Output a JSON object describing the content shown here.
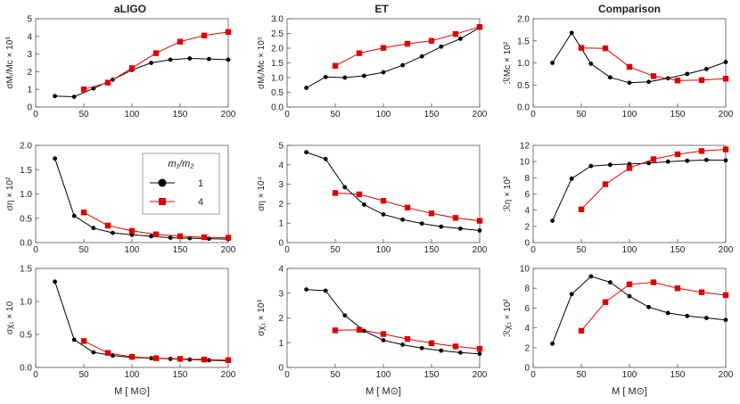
{
  "column_titles": [
    "aLIGO",
    "ET",
    "Comparison"
  ],
  "x_axis_label": "M [ M⊙]",
  "colors": {
    "series_1": "#000000",
    "series_4": "#e00000",
    "frame": "#555555"
  },
  "legend": {
    "title": "m₁/m₂",
    "entries": [
      "1",
      "4"
    ]
  },
  "chart_data": [
    {
      "id": "p00",
      "type": "line",
      "ylabel": "σMⱼ/Mc × 10³",
      "xlim": [
        0,
        200
      ],
      "ylim": [
        0,
        5
      ],
      "xticks": [
        0,
        50,
        100,
        150,
        200
      ],
      "yticks": [
        0,
        1,
        2,
        3,
        4,
        5
      ],
      "ytick_labels": [
        "0",
        "1",
        "2",
        "3",
        "4",
        "5"
      ],
      "series": [
        {
          "name": "1",
          "x": [
            20,
            40,
            60,
            80,
            100,
            120,
            140,
            160,
            180,
            200
          ],
          "y": [
            0.62,
            0.58,
            1.05,
            1.55,
            2.1,
            2.5,
            2.68,
            2.75,
            2.72,
            2.68
          ]
        },
        {
          "name": "4",
          "x": [
            50,
            75,
            100,
            125,
            150,
            175,
            200
          ],
          "y": [
            1.0,
            1.38,
            2.2,
            3.05,
            3.7,
            4.05,
            4.25
          ]
        }
      ]
    },
    {
      "id": "p01",
      "type": "line",
      "ylabel": "σMⱼ/Mc × 10⁵",
      "xlim": [
        0,
        200
      ],
      "ylim": [
        0,
        3
      ],
      "xticks": [
        0,
        50,
        100,
        150,
        200
      ],
      "yticks": [
        0,
        0.5,
        1,
        1.5,
        2,
        2.5,
        3
      ],
      "ytick_labels": [
        "0.0",
        "0.5",
        "1.0",
        "1.5",
        "2.0",
        "2.5",
        "3.0"
      ],
      "series": [
        {
          "name": "1",
          "x": [
            20,
            40,
            60,
            80,
            100,
            120,
            140,
            160,
            180,
            200
          ],
          "y": [
            0.65,
            1.02,
            1.0,
            1.06,
            1.18,
            1.42,
            1.72,
            2.05,
            2.32,
            2.7
          ]
        },
        {
          "name": "4",
          "x": [
            50,
            75,
            100,
            125,
            150,
            175,
            200
          ],
          "y": [
            1.4,
            1.83,
            2.01,
            2.15,
            2.25,
            2.48,
            2.72
          ]
        }
      ]
    },
    {
      "id": "p02",
      "type": "line",
      "ylabel": "ℛMc × 10²",
      "xlim": [
        0,
        200
      ],
      "ylim": [
        0,
        2
      ],
      "xticks": [
        0,
        50,
        100,
        150,
        200
      ],
      "yticks": [
        0,
        0.5,
        1,
        1.5,
        2
      ],
      "ytick_labels": [
        "0.0",
        "0.5",
        "1.0",
        "1.5",
        "2.0"
      ],
      "series": [
        {
          "name": "1",
          "x": [
            20,
            40,
            60,
            80,
            100,
            120,
            140,
            160,
            180,
            200
          ],
          "y": [
            1.0,
            1.68,
            0.98,
            0.67,
            0.55,
            0.57,
            0.65,
            0.75,
            0.86,
            1.02
          ]
        },
        {
          "name": "4",
          "x": [
            50,
            75,
            100,
            125,
            150,
            175,
            200
          ],
          "y": [
            1.34,
            1.33,
            0.91,
            0.7,
            0.6,
            0.61,
            0.64
          ]
        }
      ]
    },
    {
      "id": "p10",
      "type": "line",
      "ylabel": "ση × 10²",
      "xlim": [
        0,
        200
      ],
      "ylim": [
        0,
        2
      ],
      "xticks": [
        0,
        50,
        100,
        150,
        200
      ],
      "yticks": [
        0,
        0.5,
        1,
        1.5,
        2
      ],
      "ytick_labels": [
        "0.0",
        "0.5",
        "1.0",
        "1.5",
        "2.0"
      ],
      "series": [
        {
          "name": "1",
          "x": [
            20,
            40,
            60,
            80,
            100,
            120,
            140,
            160,
            180,
            200
          ],
          "y": [
            1.73,
            0.55,
            0.3,
            0.2,
            0.16,
            0.13,
            0.1,
            0.09,
            0.08,
            0.07
          ]
        },
        {
          "name": "4",
          "x": [
            50,
            75,
            100,
            125,
            150,
            175,
            200
          ],
          "y": [
            0.62,
            0.35,
            0.24,
            0.17,
            0.13,
            0.11,
            0.1
          ]
        }
      ]
    },
    {
      "id": "p11",
      "type": "line",
      "ylabel": "ση × 10⁴",
      "xlim": [
        0,
        200
      ],
      "ylim": [
        0,
        5
      ],
      "xticks": [
        0,
        50,
        100,
        150,
        200
      ],
      "yticks": [
        0,
        1,
        2,
        3,
        4,
        5
      ],
      "ytick_labels": [
        "0",
        "1",
        "2",
        "3",
        "4",
        "5"
      ],
      "series": [
        {
          "name": "1",
          "x": [
            20,
            40,
            60,
            80,
            100,
            120,
            140,
            160,
            180,
            200
          ],
          "y": [
            4.65,
            4.3,
            2.85,
            1.95,
            1.45,
            1.18,
            0.98,
            0.82,
            0.72,
            0.62
          ]
        },
        {
          "name": "4",
          "x": [
            50,
            75,
            100,
            125,
            150,
            175,
            200
          ],
          "y": [
            2.55,
            2.48,
            2.15,
            1.8,
            1.5,
            1.27,
            1.12
          ]
        }
      ]
    },
    {
      "id": "p12",
      "type": "line",
      "ylabel": "ℛη × 10²",
      "xlim": [
        0,
        200
      ],
      "ylim": [
        0,
        12
      ],
      "xticks": [
        0,
        50,
        100,
        150,
        200
      ],
      "yticks": [
        0,
        2,
        4,
        6,
        8,
        10,
        12
      ],
      "ytick_labels": [
        "0",
        "2",
        "4",
        "6",
        "8",
        "10",
        "12"
      ],
      "series": [
        {
          "name": "1",
          "x": [
            20,
            40,
            60,
            80,
            100,
            120,
            140,
            160,
            180,
            200
          ],
          "y": [
            2.7,
            7.9,
            9.45,
            9.6,
            9.7,
            9.8,
            10.0,
            10.1,
            10.2,
            10.15
          ]
        },
        {
          "name": "4",
          "x": [
            50,
            75,
            100,
            125,
            150,
            175,
            200
          ],
          "y": [
            4.1,
            7.2,
            9.2,
            10.3,
            10.9,
            11.3,
            11.5
          ]
        }
      ]
    },
    {
      "id": "p20",
      "type": "line",
      "ylabel": "σχ₁ × 10",
      "xlim": [
        0,
        200
      ],
      "ylim": [
        0,
        1.5
      ],
      "xticks": [
        0,
        50,
        100,
        150,
        200
      ],
      "yticks": [
        0,
        0.5,
        1,
        1.5
      ],
      "ytick_labels": [
        "0.0",
        "0.5",
        "1.0",
        "1.5"
      ],
      "series": [
        {
          "name": "1",
          "x": [
            20,
            40,
            60,
            80,
            100,
            120,
            140,
            160,
            180,
            200
          ],
          "y": [
            1.3,
            0.42,
            0.23,
            0.18,
            0.15,
            0.14,
            0.13,
            0.12,
            0.11,
            0.1
          ]
        },
        {
          "name": "4",
          "x": [
            50,
            75,
            100,
            125,
            150,
            175,
            200
          ],
          "y": [
            0.4,
            0.22,
            0.16,
            0.14,
            0.13,
            0.12,
            0.11
          ]
        }
      ]
    },
    {
      "id": "p21",
      "type": "line",
      "ylabel": "σχ₁ × 10³",
      "xlim": [
        0,
        200
      ],
      "ylim": [
        0,
        4
      ],
      "xticks": [
        0,
        50,
        100,
        150,
        200
      ],
      "yticks": [
        0,
        1,
        2,
        3,
        4
      ],
      "ytick_labels": [
        "0",
        "1",
        "2",
        "3",
        "4"
      ],
      "series": [
        {
          "name": "1",
          "x": [
            20,
            40,
            60,
            80,
            100,
            120,
            140,
            160,
            180,
            200
          ],
          "y": [
            3.15,
            3.1,
            2.1,
            1.48,
            1.1,
            0.92,
            0.78,
            0.68,
            0.6,
            0.55
          ]
        },
        {
          "name": "4",
          "x": [
            50,
            75,
            100,
            125,
            150,
            175,
            200
          ],
          "y": [
            1.5,
            1.52,
            1.35,
            1.15,
            0.98,
            0.85,
            0.75
          ]
        }
      ]
    },
    {
      "id": "p22",
      "type": "line",
      "ylabel": "ℛχ₁ × 10²",
      "xlim": [
        0,
        200
      ],
      "ylim": [
        0,
        10
      ],
      "xticks": [
        0,
        50,
        100,
        150,
        200
      ],
      "yticks": [
        0,
        2,
        4,
        6,
        8,
        10
      ],
      "ytick_labels": [
        "0",
        "2",
        "4",
        "6",
        "8",
        "10"
      ],
      "series": [
        {
          "name": "1",
          "x": [
            20,
            40,
            60,
            80,
            100,
            120,
            140,
            160,
            180,
            200
          ],
          "y": [
            2.4,
            7.4,
            9.2,
            8.6,
            7.2,
            6.1,
            5.5,
            5.2,
            5.0,
            4.8
          ]
        },
        {
          "name": "4",
          "x": [
            50,
            75,
            100,
            125,
            150,
            175,
            200
          ],
          "y": [
            3.7,
            6.6,
            8.4,
            8.6,
            8.0,
            7.6,
            7.3
          ]
        }
      ]
    }
  ]
}
